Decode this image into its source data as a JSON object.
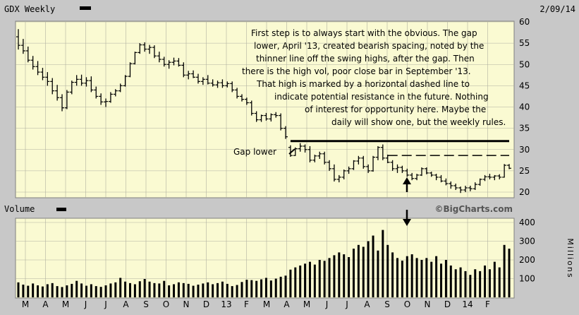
{
  "header": {
    "symbol_label": "GDX Weekly",
    "date_label": "2/09/14"
  },
  "volume_panel": {
    "label": "Volume",
    "watermark": "©BigCharts.com",
    "unit_label": "Millions"
  },
  "annotations": {
    "commentary": [
      "First step is to always start with the obvious.  The gap",
      "lower, April '13, created bearish spacing, noted by the",
      "thinner line off the swing highs, after the gap.  Then",
      "there is the high vol, poor close bar in September '13.",
      "That high is marked by a horizontal dashed line to",
      "indicate potential resistance in the future.  Nothing",
      "of interest for opportunity here.  Maybe the",
      "daily will show one, but the weekly rules."
    ],
    "gap_label": "Gap lower"
  },
  "colors": {
    "panel_bg": "#fafad2",
    "frame_bg": "#c8c8c8",
    "grid": "#b0b0a0",
    "bars": "#000000"
  },
  "chart_data": [
    {
      "type": "ohlc",
      "title": "GDX Weekly",
      "ylim": [
        18,
        60
      ],
      "y_ticks": [
        20,
        25,
        30,
        35,
        40,
        45,
        50,
        55,
        60
      ],
      "x_tick_labels": [
        "M",
        "A",
        "M",
        "J",
        "J",
        "A",
        "S",
        "O",
        "N",
        "D",
        "13",
        "F",
        "M",
        "A",
        "M",
        "J",
        "J",
        "A",
        "S",
        "O",
        "N",
        "D",
        "14",
        "F"
      ],
      "grid": true,
      "weeks": 102,
      "bars": [
        [
          56.5,
          58.3,
          53.5,
          54.5
        ],
        [
          54.5,
          56,
          52.5,
          53.2
        ],
        [
          53.2,
          54.2,
          50.5,
          51
        ],
        [
          51,
          52,
          48.8,
          49.5
        ],
        [
          49.5,
          50.8,
          47.5,
          48.2
        ],
        [
          48.2,
          49.2,
          46.3,
          47
        ],
        [
          47,
          48.2,
          45,
          46
        ],
        [
          46,
          46.8,
          43,
          43.8
        ],
        [
          43.8,
          45.2,
          41.5,
          42.2
        ],
        [
          42.2,
          43,
          39,
          39.8
        ],
        [
          39.8,
          44,
          39.5,
          43.5
        ],
        [
          43.5,
          46.2,
          43,
          45.8
        ],
        [
          45.8,
          47.5,
          45,
          46.5
        ],
        [
          46.5,
          47.6,
          45,
          45.6
        ],
        [
          45.6,
          47,
          44.8,
          46.2
        ],
        [
          46.2,
          47.2,
          43.5,
          44
        ],
        [
          44,
          44.8,
          42,
          42.5
        ],
        [
          42.5,
          43.2,
          40.5,
          41.2
        ],
        [
          41.2,
          42,
          40,
          41.3
        ],
        [
          41.3,
          43.5,
          41,
          43
        ],
        [
          43,
          44.2,
          42.5,
          43.8
        ],
        [
          43.8,
          45.5,
          43.5,
          45
        ],
        [
          45,
          47.5,
          44.8,
          47.2
        ],
        [
          47.2,
          50.5,
          47,
          50.2
        ],
        [
          50.2,
          53,
          50,
          52.8
        ],
        [
          52.8,
          55,
          52.5,
          54.6
        ],
        [
          54.6,
          55.2,
          53,
          53.6
        ],
        [
          53.6,
          54.6,
          52.5,
          54
        ],
        [
          54,
          54.5,
          51.5,
          52
        ],
        [
          52,
          53,
          50.5,
          51.2
        ],
        [
          51.2,
          51.8,
          49.5,
          50
        ],
        [
          50,
          51,
          49,
          50.5
        ],
        [
          50.5,
          51.6,
          49.8,
          50.8
        ],
        [
          50.8,
          51.5,
          49.5,
          49.8
        ],
        [
          49.8,
          50.5,
          47,
          47.5
        ],
        [
          47.5,
          48.5,
          46.5,
          47.8
        ],
        [
          47.8,
          48.6,
          46.8,
          47
        ],
        [
          47,
          47.8,
          45.5,
          46
        ],
        [
          46,
          47,
          45.2,
          46.5
        ],
        [
          46.5,
          47.5,
          45.3,
          45.6
        ],
        [
          45.6,
          46.5,
          44.8,
          45.2
        ],
        [
          45.2,
          46.2,
          44.5,
          45.7
        ],
        [
          45.7,
          46.5,
          44.5,
          45
        ],
        [
          45,
          46,
          44.6,
          45.5
        ],
        [
          45.5,
          46,
          43.5,
          44
        ],
        [
          44,
          44.5,
          42,
          42.5
        ],
        [
          42.5,
          43,
          41.3,
          41.8
        ],
        [
          41.8,
          42.2,
          40.5,
          41
        ],
        [
          41,
          41.5,
          38,
          38.5
        ],
        [
          38.5,
          39,
          36.5,
          37
        ],
        [
          37,
          38.2,
          36.5,
          38
        ],
        [
          38,
          38.6,
          36.8,
          37.2
        ],
        [
          37.2,
          38.5,
          36.6,
          38.2
        ],
        [
          38.2,
          38.8,
          37.5,
          38
        ],
        [
          38,
          38.5,
          34.5,
          35
        ],
        [
          35,
          35.5,
          32.5,
          33
        ],
        [
          30.5,
          31,
          28.3,
          28.6
        ],
        [
          28.6,
          30.5,
          28.5,
          30.2
        ],
        [
          30.2,
          31.5,
          29.5,
          30.8
        ],
        [
          30.8,
          31.2,
          29.3,
          30
        ],
        [
          30,
          30.8,
          27,
          27.5
        ],
        [
          27.5,
          28.8,
          27,
          28.5
        ],
        [
          28.5,
          29.5,
          27.8,
          29
        ],
        [
          29,
          29.5,
          26.5,
          27
        ],
        [
          27,
          27.5,
          25,
          25.5
        ],
        [
          25.5,
          26.5,
          22.5,
          23
        ],
        [
          23,
          24,
          22.3,
          23.5
        ],
        [
          23.5,
          25.3,
          23,
          25
        ],
        [
          25,
          26,
          24.3,
          25.5
        ],
        [
          25.5,
          27.5,
          25.2,
          27.3
        ],
        [
          27.3,
          28.5,
          26.5,
          28
        ],
        [
          28,
          28.5,
          25.5,
          26
        ],
        [
          26,
          26.5,
          24.5,
          25
        ],
        [
          25,
          28.5,
          24.8,
          28.2
        ],
        [
          28.2,
          30.8,
          27.5,
          30.5
        ],
        [
          30.5,
          31.2,
          27.5,
          28
        ],
        [
          28,
          28.8,
          26.8,
          27
        ],
        [
          27,
          27.5,
          25,
          25.5
        ],
        [
          25.5,
          26.5,
          24.5,
          25.8
        ],
        [
          25.8,
          26.2,
          24.5,
          25
        ],
        [
          25,
          25.5,
          23.6,
          24
        ],
        [
          24,
          24.5,
          22.8,
          23.2
        ],
        [
          23.2,
          24.3,
          22.8,
          24
        ],
        [
          24,
          25.8,
          23.8,
          25.5
        ],
        [
          25.5,
          25.8,
          24.2,
          24.5
        ],
        [
          24.5,
          24.8,
          23.6,
          24
        ],
        [
          24,
          24.3,
          22.8,
          23.5
        ],
        [
          23.5,
          24,
          22.3,
          22.6
        ],
        [
          22.6,
          23.2,
          21.6,
          22
        ],
        [
          22,
          22.5,
          20.8,
          21.5
        ],
        [
          21.5,
          22,
          20.5,
          21
        ],
        [
          21,
          21.3,
          19.8,
          20.5
        ],
        [
          20.5,
          21.5,
          20,
          21
        ],
        [
          21,
          21.5,
          20.2,
          20.8
        ],
        [
          20.8,
          22.3,
          20.5,
          21.8
        ],
        [
          21.8,
          23.2,
          21.5,
          23
        ],
        [
          23,
          24,
          22.6,
          23.6
        ],
        [
          23.6,
          24.3,
          23,
          23.5
        ],
        [
          23.5,
          24,
          22.8,
          23.8
        ],
        [
          23.8,
          24.2,
          23,
          23.5
        ],
        [
          23.5,
          26.6,
          23.4,
          26.3
        ],
        [
          26.3,
          26.6,
          25.4,
          25.6
        ]
      ],
      "resistance_line": {
        "value": 32,
        "from_week": 56,
        "to_week": 101
      },
      "dashed_resistance": {
        "value": 28.6,
        "from_week": 76,
        "to_week": 101
      }
    },
    {
      "type": "bar",
      "title": "Volume",
      "ylabel": "Millions",
      "ylim": [
        0,
        400
      ],
      "y_ticks": [
        100,
        200,
        300,
        400
      ],
      "grid": true,
      "values": [
        80,
        68,
        62,
        74,
        64,
        58,
        70,
        76,
        60,
        55,
        64,
        72,
        88,
        74,
        62,
        70,
        60,
        56,
        64,
        74,
        80,
        104,
        84,
        76,
        70,
        86,
        98,
        84,
        76,
        74,
        88,
        64,
        70,
        80,
        76,
        72,
        62,
        68,
        74,
        80,
        70,
        76,
        84,
        72,
        60,
        66,
        82,
        94,
        92,
        88,
        96,
        104,
        90,
        100,
        110,
        116,
        148,
        160,
        170,
        180,
        190,
        175,
        200,
        195,
        210,
        225,
        240,
        230,
        215,
        260,
        280,
        270,
        300,
        330,
        250,
        360,
        280,
        240,
        210,
        196,
        220,
        230,
        210,
        200,
        210,
        190,
        220,
        180,
        200,
        170,
        150,
        160,
        140,
        120,
        150,
        140,
        170,
        150,
        190,
        160,
        280,
        260
      ]
    }
  ]
}
